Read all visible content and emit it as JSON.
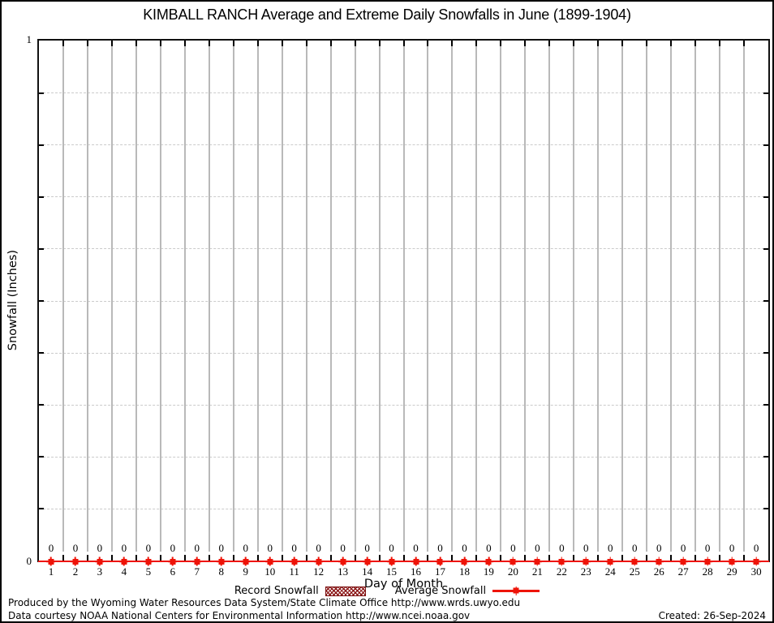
{
  "chart_data": {
    "type": "line",
    "title": "KIMBALL RANCH Average and Extreme Daily Snowfalls in June (1899-1904)",
    "xlabel": "Day of Month",
    "ylabel": "Snowfall (Inches)",
    "x": [
      1,
      2,
      3,
      4,
      5,
      6,
      7,
      8,
      9,
      10,
      11,
      12,
      13,
      14,
      15,
      16,
      17,
      18,
      19,
      20,
      21,
      22,
      23,
      24,
      25,
      26,
      27,
      28,
      29,
      30
    ],
    "ylim": [
      0,
      1
    ],
    "ytick_labels": [
      "0",
      "1"
    ],
    "y_minor_grid_interval": 0.1,
    "grid": true,
    "legend_position": "bottom",
    "series": [
      {
        "name": "Record Snowfall",
        "type": "bar",
        "values": [
          0,
          0,
          0,
          0,
          0,
          0,
          0,
          0,
          0,
          0,
          0,
          0,
          0,
          0,
          0,
          0,
          0,
          0,
          0,
          0,
          0,
          0,
          0,
          0,
          0,
          0,
          0,
          0,
          0,
          0
        ]
      },
      {
        "name": "Average Snowfall",
        "type": "line",
        "values": [
          0,
          0,
          0,
          0,
          0,
          0,
          0,
          0,
          0,
          0,
          0,
          0,
          0,
          0,
          0,
          0,
          0,
          0,
          0,
          0,
          0,
          0,
          0,
          0,
          0,
          0,
          0,
          0,
          0,
          0
        ],
        "point_labels_visible": true
      }
    ]
  },
  "colors": {
    "average_line": "#ee1409",
    "record_fill": "#8b1717",
    "vgrid": "#b9b9b9",
    "hgrid": "#cbcbcb"
  },
  "footer": {
    "produced": "Produced by the Wyoming Water Resources Data System/State Climate Office http://www.wrds.uwyo.edu",
    "courtesy": "Data courtesy NOAA National Centers for Environmental Information http://www.ncei.noaa.gov",
    "created": "Created: 26-Sep-2024"
  }
}
